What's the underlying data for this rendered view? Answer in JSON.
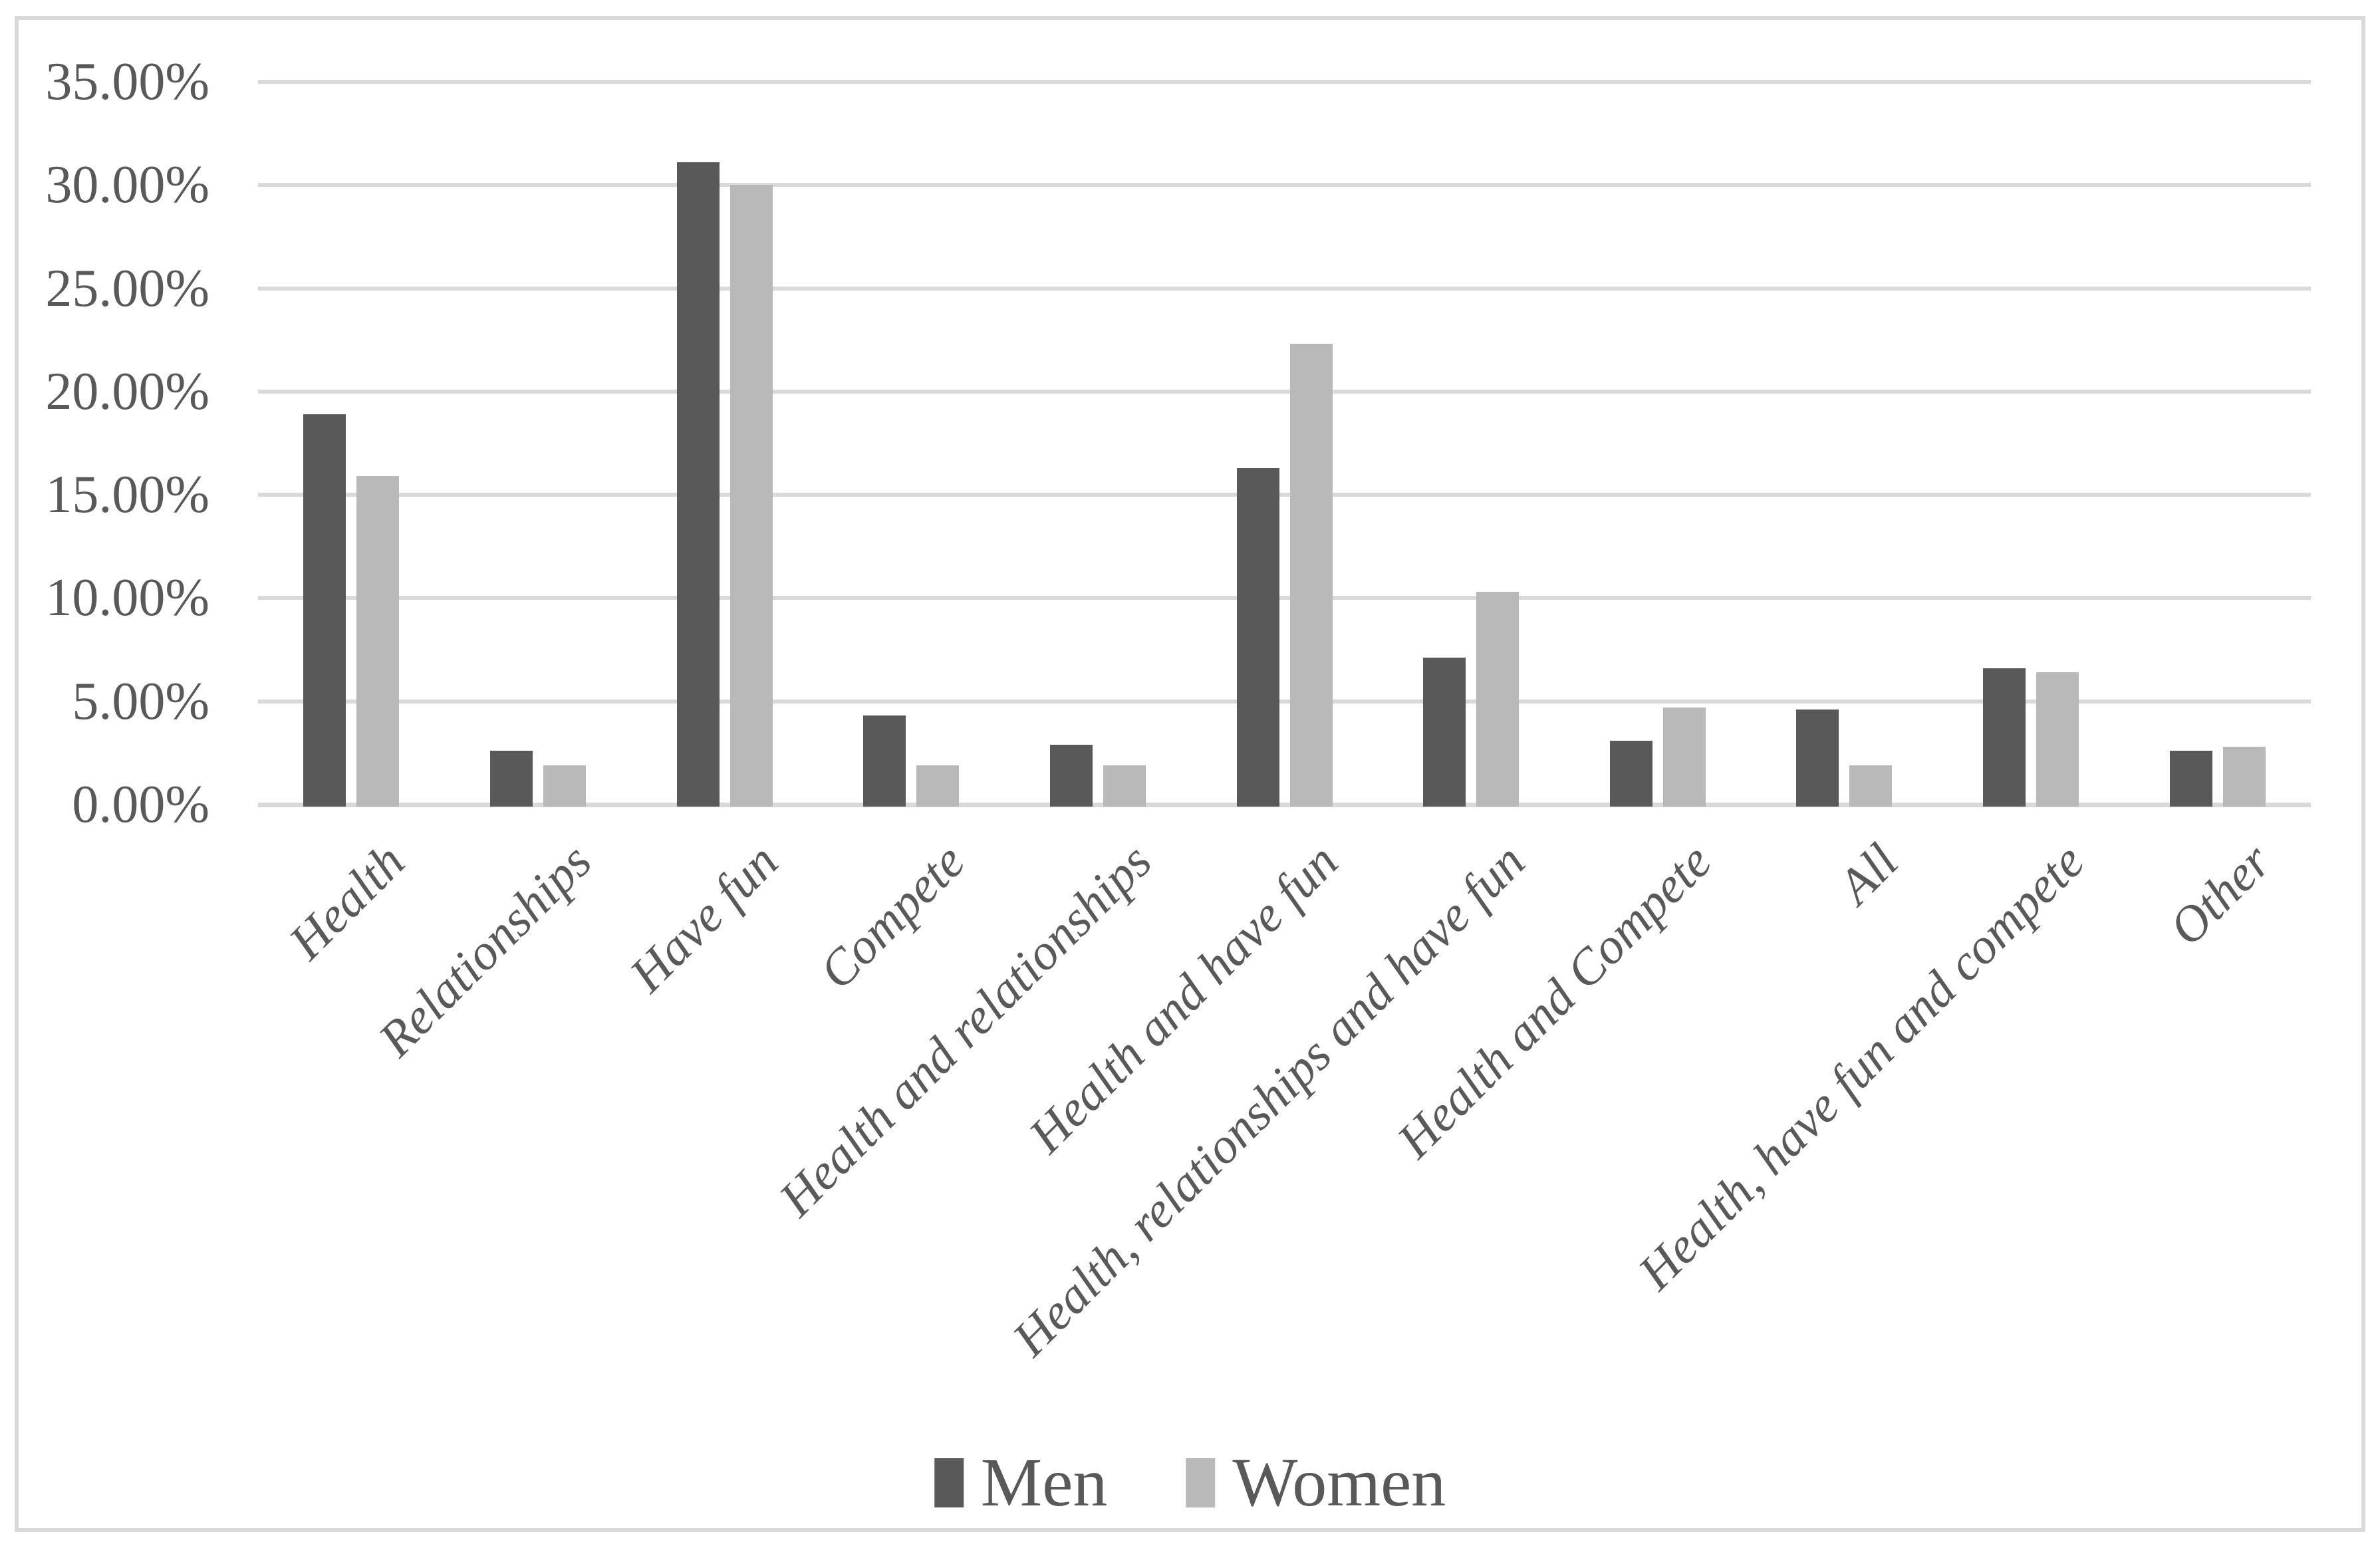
{
  "chart_data": {
    "type": "bar",
    "title": "",
    "categories": [
      "Health",
      "Relationships",
      "Have fun",
      "Compete",
      "Health and relationships",
      "Health and have fun",
      "Health, relationships and have fun",
      "Health and Compete",
      "All",
      "Health, have fun and compete",
      "Other"
    ],
    "series": [
      {
        "name": "Men",
        "color": "#595959",
        "values": [
          18.9,
          2.6,
          31.1,
          4.3,
          2.9,
          16.3,
          7.1,
          3.1,
          4.6,
          6.6,
          2.6
        ]
      },
      {
        "name": "Women",
        "color": "#b9b9b9",
        "values": [
          15.9,
          1.9,
          30.0,
          1.9,
          1.9,
          22.3,
          10.3,
          4.7,
          1.9,
          6.4,
          2.8
        ]
      }
    ],
    "y_axis": {
      "min": 0,
      "max": 35,
      "step": 5,
      "tick_labels": [
        "0.00%",
        "5.00%",
        "10.00%",
        "15.00%",
        "20.00%",
        "25.00%",
        "30.00%",
        "35.00%"
      ],
      "format": "percent_two_decimals"
    },
    "x_axis": {
      "label_rotation_deg": 45,
      "label_style": "italic"
    },
    "legend": {
      "position": "bottom",
      "items": [
        "Men",
        "Women"
      ]
    },
    "grid": true,
    "colors": {
      "gridline": "#d9d9d9",
      "axis_line": "#d9d9d9",
      "frame_border": "#d9d9d9",
      "text": "#595959",
      "background": "#ffffff"
    }
  }
}
